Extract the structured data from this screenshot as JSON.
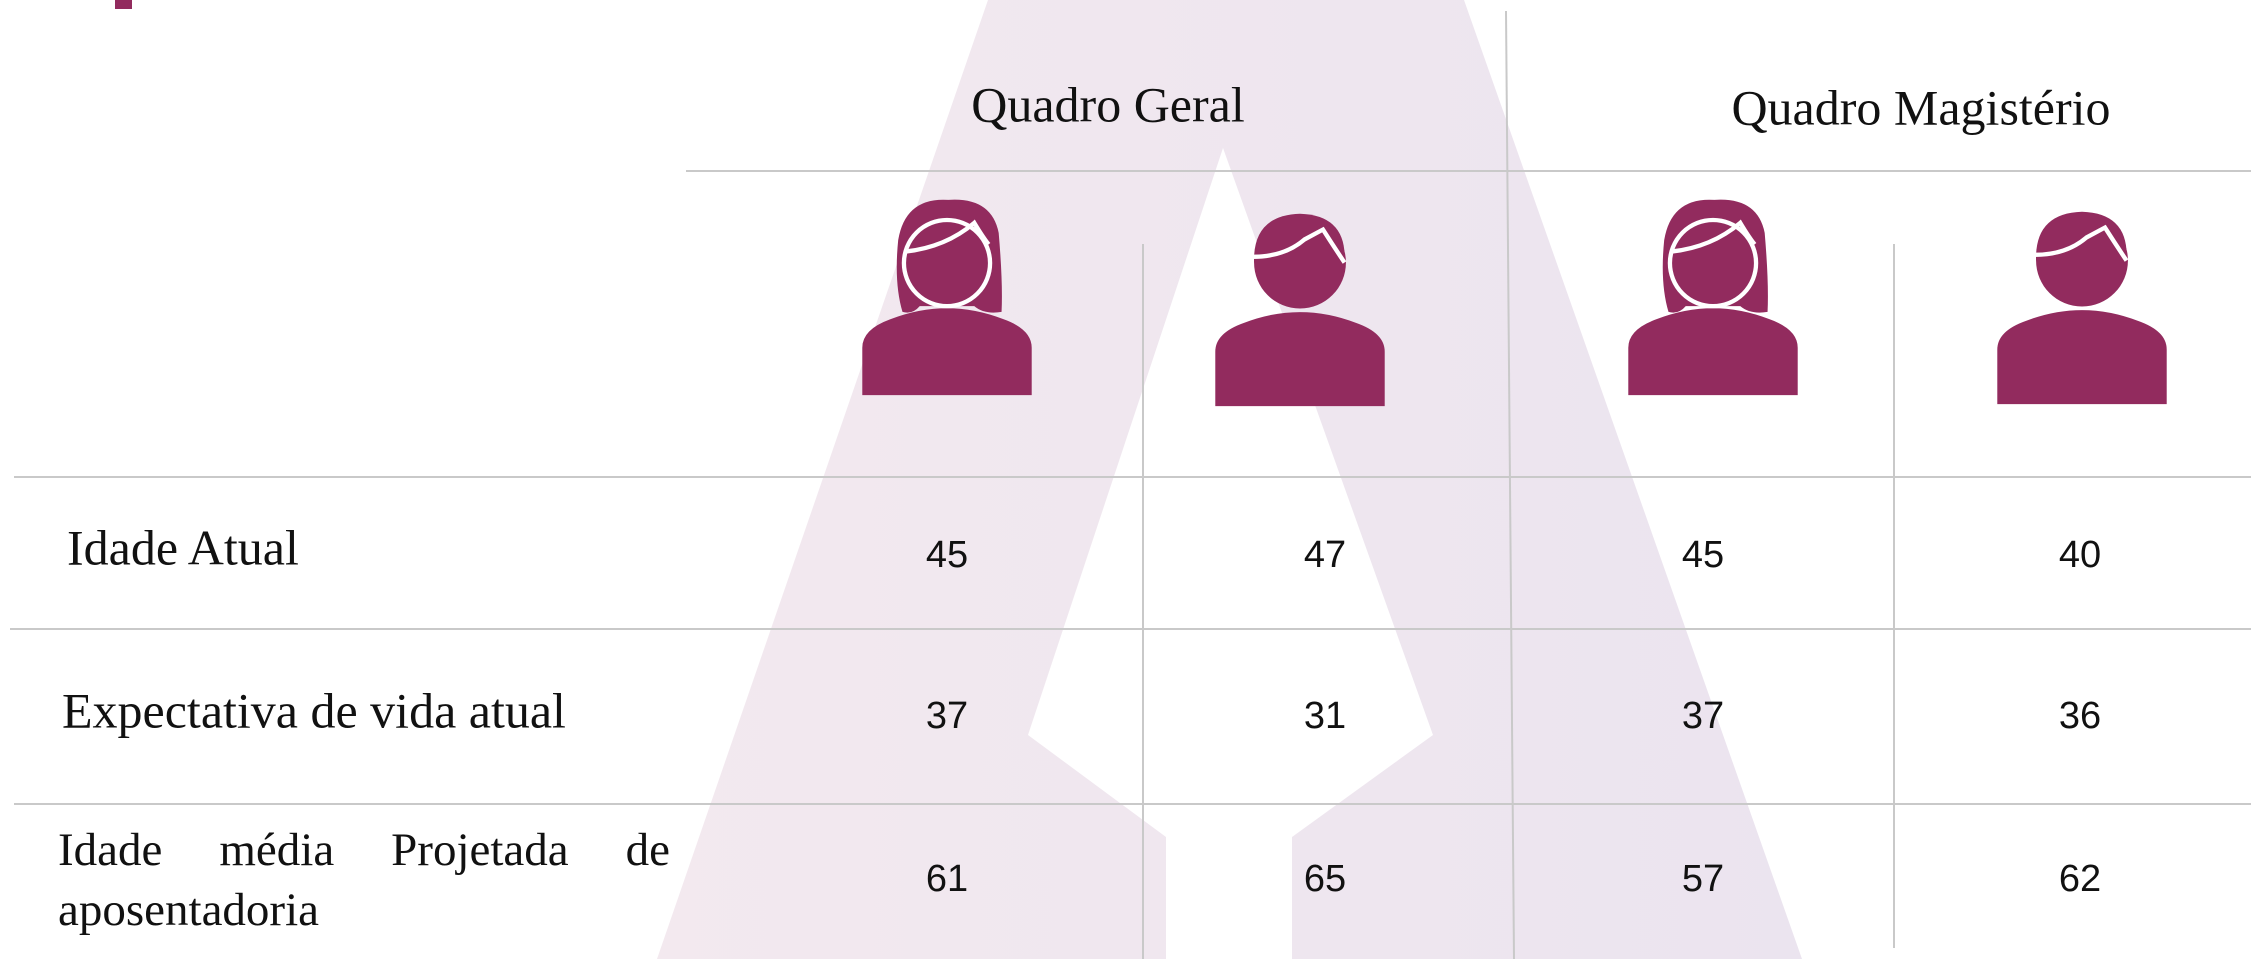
{
  "table": {
    "headers": [
      "Quadro Geral",
      "Quadro Magistério"
    ],
    "rows": [
      {
        "label": "Idade Atual",
        "values": [
          45,
          47,
          45,
          40
        ]
      },
      {
        "label": "Expectativa de vida atual",
        "values": [
          37,
          31,
          37,
          36
        ]
      },
      {
        "label": "Idade média Projetada de aposentadoria",
        "values": [
          61,
          65,
          57,
          62
        ]
      }
    ]
  }
}
